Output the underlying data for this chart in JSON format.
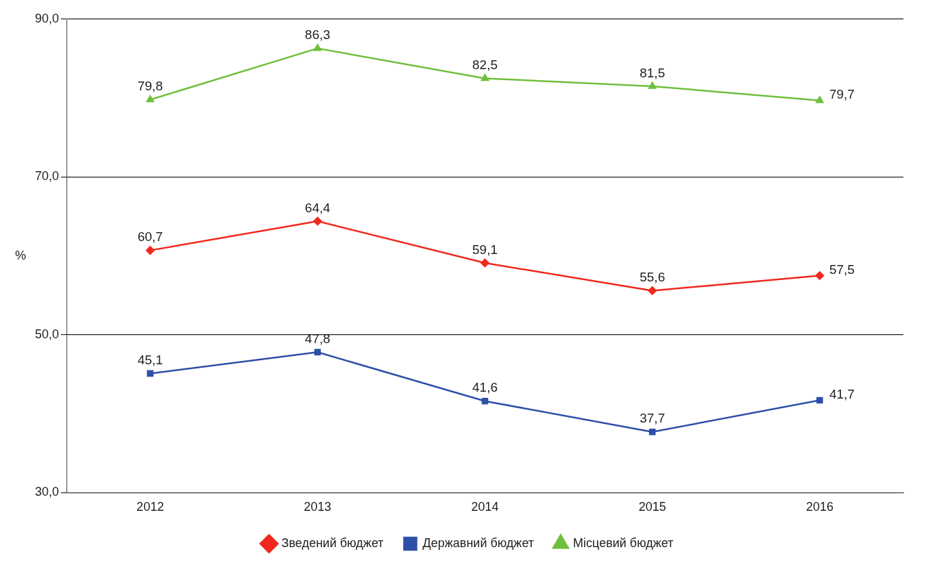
{
  "chart_data": {
    "type": "line",
    "ylabel": "%",
    "categories": [
      "2012",
      "2013",
      "2014",
      "2015",
      "2016"
    ],
    "series": [
      {
        "name": "Зведений бюджет",
        "color": "#f0281e",
        "marker": "diamond",
        "values": [
          60.7,
          64.4,
          59.1,
          55.6,
          57.5
        ],
        "value_labels": [
          "60,7",
          "64,4",
          "59,1",
          "55,6",
          "57,5"
        ]
      },
      {
        "name": "Державний бюджет",
        "color": "#2e4fa8",
        "marker": "square",
        "values": [
          45.1,
          47.8,
          41.6,
          37.7,
          41.7
        ],
        "value_labels": [
          "45,1",
          "47,8",
          "41,6",
          "37,7",
          "41,7"
        ]
      },
      {
        "name": "Місцевий бюджет",
        "color": "#6fbf3c",
        "marker": "triangle",
        "values": [
          79.8,
          86.3,
          82.5,
          81.5,
          79.7
        ],
        "value_labels": [
          "79,8",
          "86,3",
          "82,5",
          "81,5",
          "79,7"
        ]
      }
    ],
    "ylim": [
      30,
      90
    ],
    "yticks": [
      {
        "value": 30,
        "label": "30,0"
      },
      {
        "value": 50,
        "label": "50,0"
      },
      {
        "value": 70,
        "label": "70,0"
      },
      {
        "value": 90,
        "label": "90,0"
      }
    ],
    "grid": "y",
    "legend": "bottom",
    "line_style": "solid"
  }
}
